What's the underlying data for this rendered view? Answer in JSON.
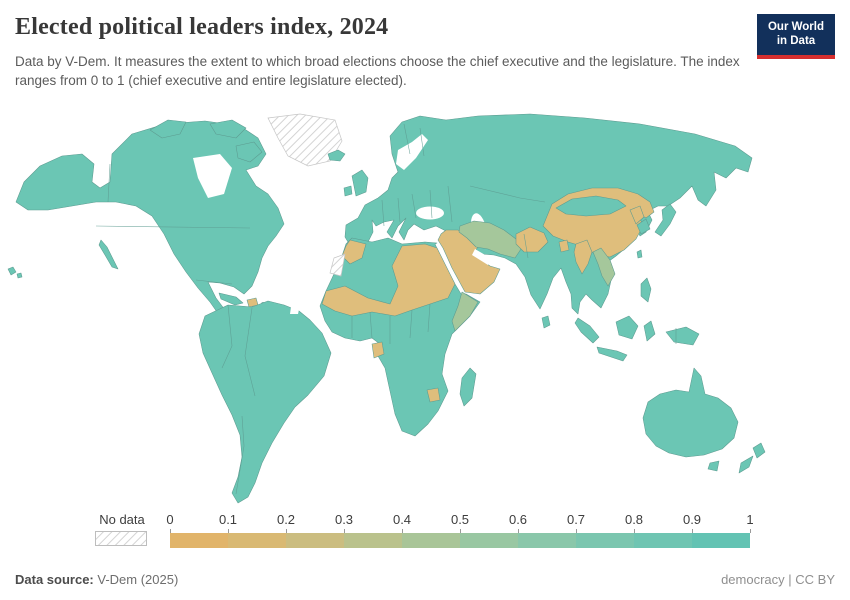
{
  "header": {
    "title": "Elected political leaders index, 2024",
    "subtitle": "Data by V-Dem. It measures the extent to which broad elections choose the chief executive and the legislature. The index ranges from 0 to 1 (chief executive and entire legislature elected).",
    "logo": {
      "line1": "Our World",
      "line2": "in Data"
    }
  },
  "legend": {
    "no_data_label": "No data",
    "ticks": [
      "0",
      "0.1",
      "0.2",
      "0.3",
      "0.4",
      "0.5",
      "0.6",
      "0.7",
      "0.8",
      "0.9",
      "1"
    ]
  },
  "footer": {
    "source_label": "Data source:",
    "source_value": " V-Dem (2025)",
    "right_text": "democracy | CC BY"
  },
  "palette": {
    "map_teal": "#6BC6B4",
    "map_tan": "#DFBE7C",
    "map_olive": "#A5C79B",
    "map_border": "#5D9B90",
    "no_data_hatch": "#D4D4D4",
    "logo_navy": "#12305B",
    "logo_red": "#D62E2E"
  },
  "chart_data": {
    "type": "choropleth_map",
    "title": "Elected political leaders index, 2024",
    "year": 2024,
    "source": "V-Dem (2025)",
    "value_range": [
      0,
      1
    ],
    "legend_bins": [
      {
        "range": "0–0.1",
        "color": "#E1B46A"
      },
      {
        "range": "0.1–0.2",
        "color": "#D9B973"
      },
      {
        "range": "0.2–0.3",
        "color": "#CBBD80"
      },
      {
        "range": "0.3–0.4",
        "color": "#BAC28C"
      },
      {
        "range": "0.4–0.5",
        "color": "#A9C598"
      },
      {
        "range": "0.5–0.6",
        "color": "#99C7A2"
      },
      {
        "range": "0.6–0.7",
        "color": "#8AC7AA"
      },
      {
        "range": "0.7–0.8",
        "color": "#7BC6AF"
      },
      {
        "range": "0.8–0.9",
        "color": "#6FC5B2"
      },
      {
        "range": "0.9–1",
        "color": "#63C3B3"
      }
    ],
    "no_data": {
      "label": "No data",
      "pattern": "diagonal-hatch",
      "regions": [
        "Greenland",
        "Western Sahara",
        "French Guiana"
      ]
    },
    "observed_regions": {
      "high_index_teal": [
        "United States",
        "Canada",
        "Mexico",
        "South America",
        "Europe",
        "Russia",
        "Kazakhstan",
        "Turkey",
        "Mongolia",
        "India",
        "Pakistan",
        "Thailand",
        "Indonesia",
        "Philippines",
        "Japan",
        "South Korea",
        "Australia",
        "New Zealand",
        "Most of Sub-Saharan Africa",
        "Madagascar"
      ],
      "low_index_tan": [
        "China",
        "North Korea",
        "Afghanistan",
        "Saudi Arabia",
        "Yemen",
        "Oman",
        "United Arab Emirates",
        "Jordan",
        "Syria",
        "Iraq",
        "Libya",
        "Egypt",
        "Sudan",
        "Chad",
        "Niger",
        "Mali",
        "Mauritania",
        "Morocco",
        "Myanmar",
        "Bangladesh",
        "Haiti",
        "Gabon",
        "Zimbabwe"
      ],
      "mid_index_olive": [
        "Iran",
        "Somalia",
        "Laos",
        "Vietnam"
      ]
    }
  }
}
